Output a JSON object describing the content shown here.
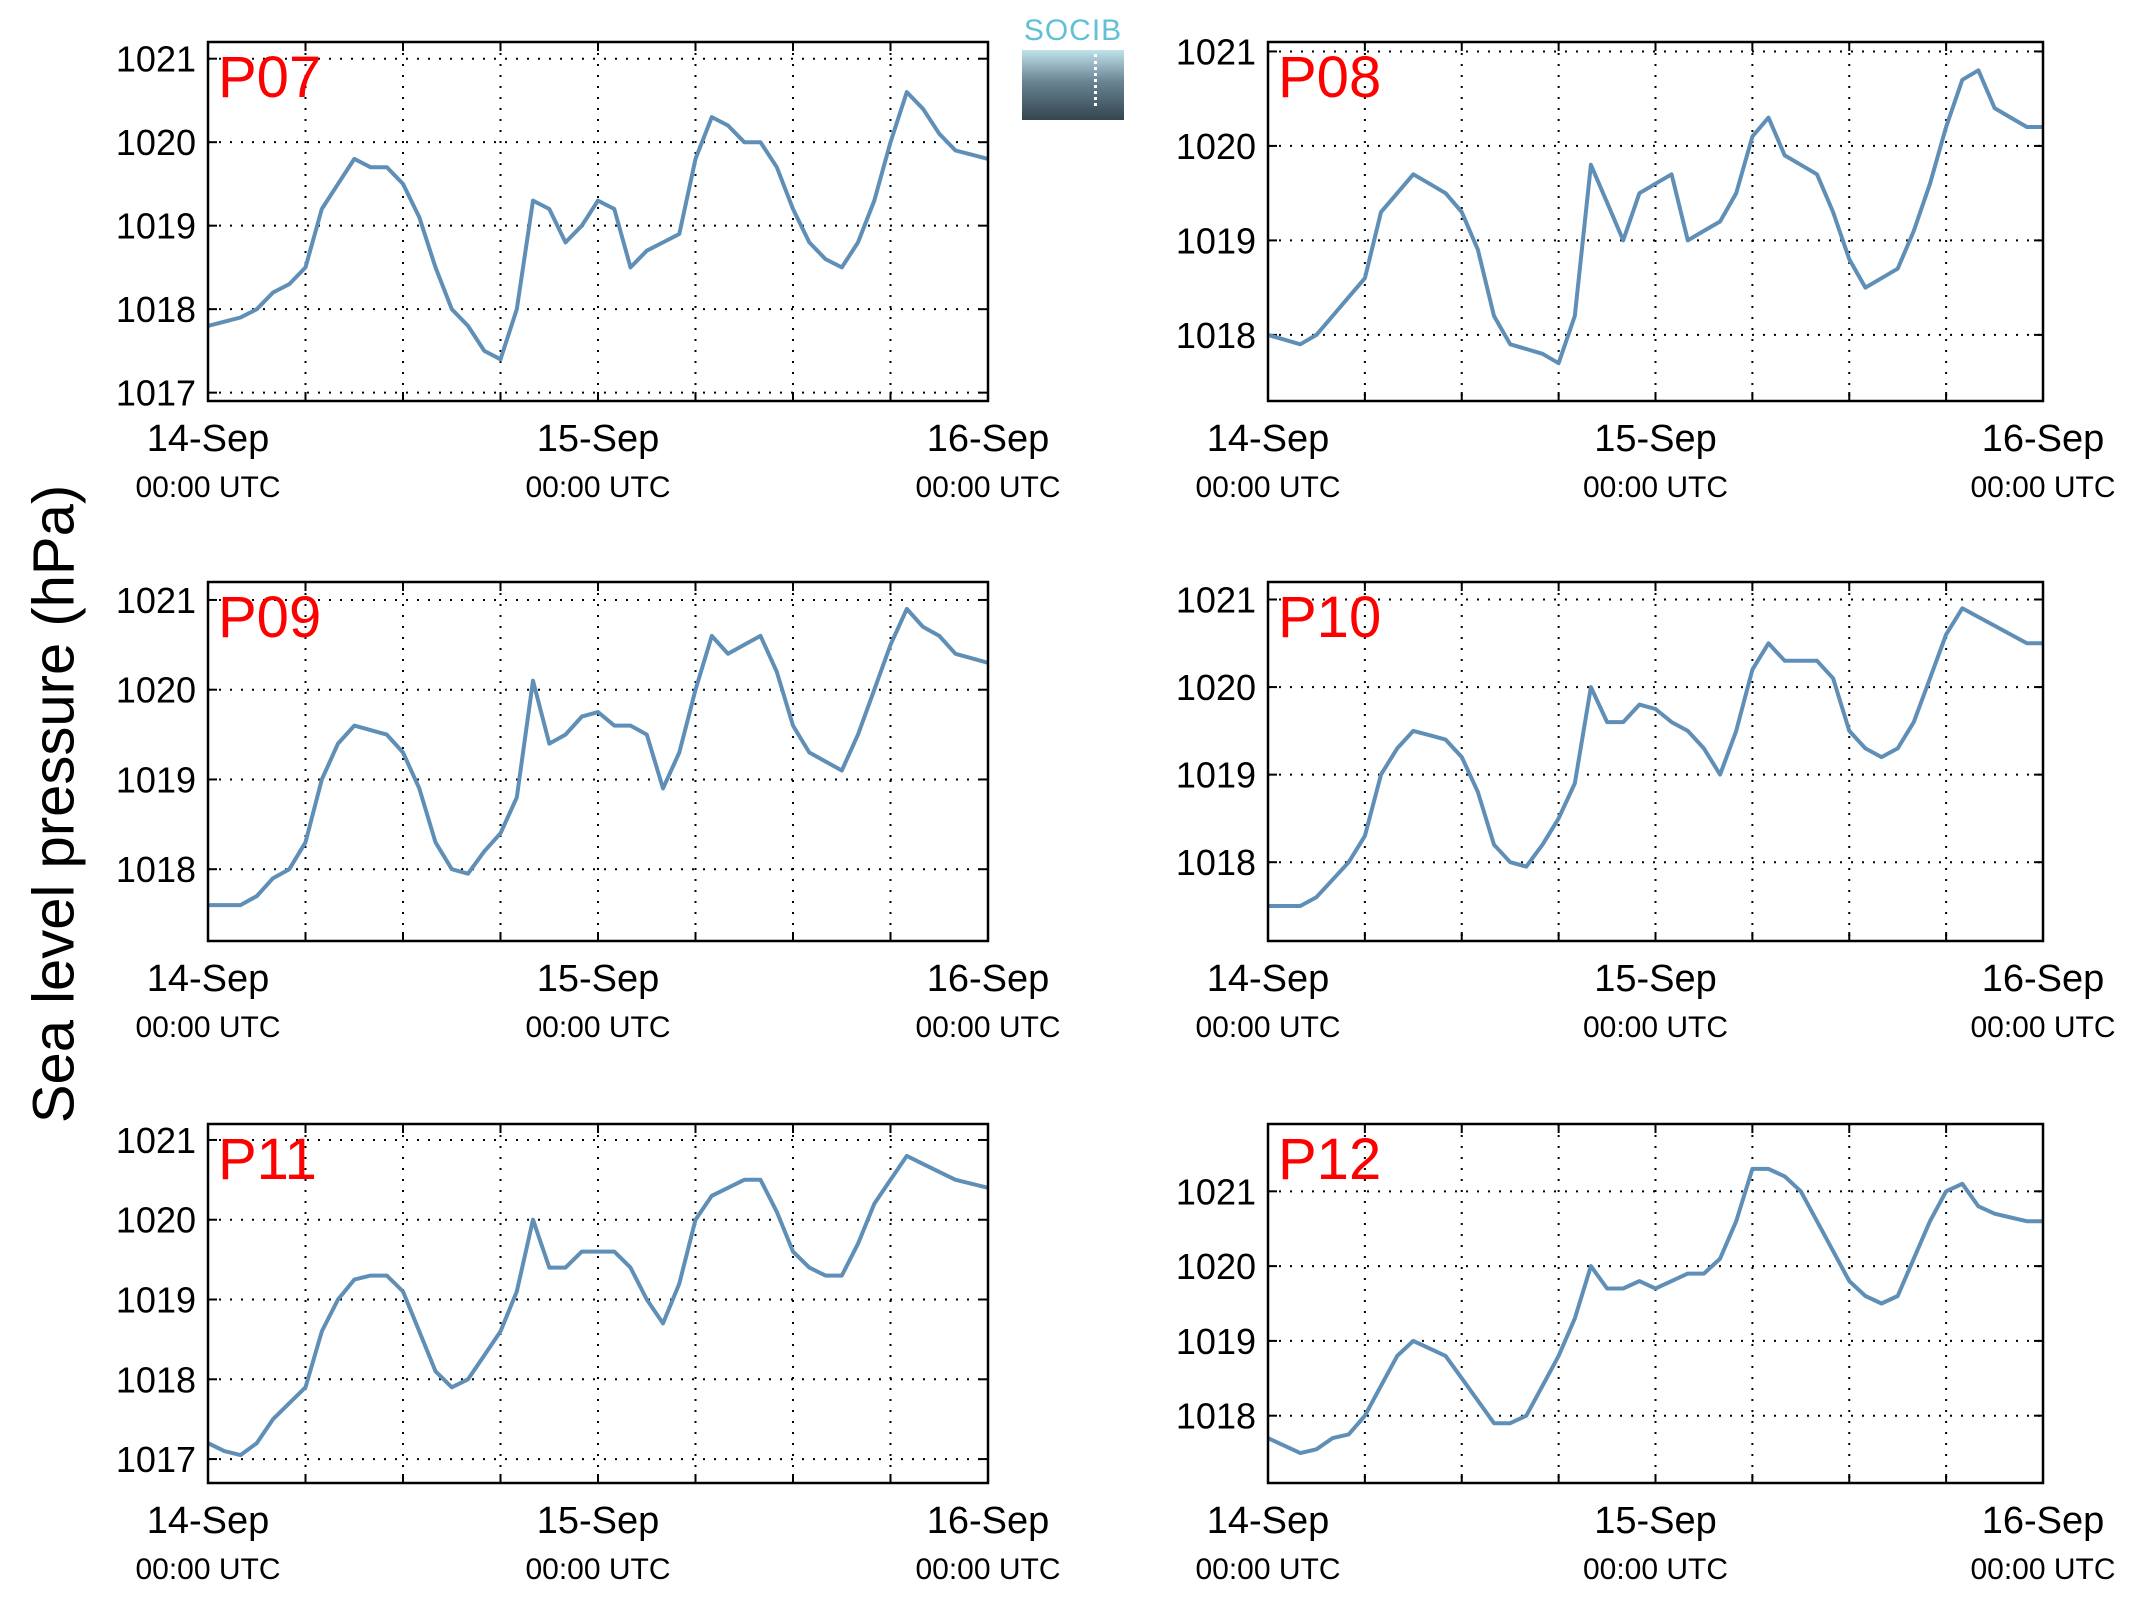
{
  "figure": {
    "ylabel": "Sea level pressure (hPa)",
    "logo_text": "SOCIB"
  },
  "colors": {
    "line": "#5f8fb6",
    "station_label": "#ff0000",
    "grid": "#000000"
  },
  "chart_data": [
    {
      "type": "line",
      "station": "P07",
      "xticks": [
        {
          "date": "14-Sep",
          "time": "00:00 UTC"
        },
        {
          "date": "15-Sep",
          "time": "00:00 UTC"
        },
        {
          "date": "16-Sep",
          "time": "00:00 UTC"
        }
      ],
      "xlim_hours": [
        0,
        48
      ],
      "ylim": [
        1016.9,
        1021.2
      ],
      "yticks": [
        1017,
        1018,
        1019,
        1020,
        1021
      ],
      "grid": true,
      "series": [
        {
          "x_hours": [
            0,
            1,
            2,
            3,
            4,
            5,
            6,
            7,
            8,
            9,
            10,
            11,
            12,
            13,
            14,
            15,
            16,
            17,
            18,
            19,
            20,
            21,
            22,
            23,
            24,
            25,
            26,
            27,
            28,
            29,
            30,
            31,
            32,
            33,
            34,
            35,
            36,
            37,
            38,
            39,
            40,
            41,
            42,
            43,
            44,
            45,
            46,
            47,
            48
          ],
          "values": [
            1017.8,
            1017.85,
            1017.9,
            1018.0,
            1018.2,
            1018.3,
            1018.5,
            1019.2,
            1019.5,
            1019.8,
            1019.7,
            1019.7,
            1019.5,
            1019.1,
            1018.5,
            1018.0,
            1017.8,
            1017.5,
            1017.4,
            1018.0,
            1019.3,
            1019.2,
            1018.8,
            1019.0,
            1019.3,
            1019.2,
            1018.5,
            1018.7,
            1018.8,
            1018.9,
            1019.8,
            1020.3,
            1020.2,
            1020.0,
            1020.0,
            1019.7,
            1019.2,
            1018.8,
            1018.6,
            1018.5,
            1018.8,
            1019.3,
            1020.0,
            1020.6,
            1020.4,
            1020.1,
            1019.9,
            1019.85,
            1019.8
          ]
        }
      ]
    },
    {
      "type": "line",
      "station": "P08",
      "xticks": [
        {
          "date": "14-Sep",
          "time": "00:00 UTC"
        },
        {
          "date": "15-Sep",
          "time": "00:00 UTC"
        },
        {
          "date": "16-Sep",
          "time": "00:00 UTC"
        }
      ],
      "xlim_hours": [
        0,
        48
      ],
      "ylim": [
        1017.3,
        1021.1
      ],
      "yticks": [
        1018,
        1019,
        1020,
        1021
      ],
      "grid": true,
      "series": [
        {
          "x_hours": [
            0,
            1,
            2,
            3,
            4,
            5,
            6,
            7,
            8,
            9,
            10,
            11,
            12,
            13,
            14,
            15,
            16,
            17,
            18,
            19,
            20,
            21,
            22,
            23,
            24,
            25,
            26,
            27,
            28,
            29,
            30,
            31,
            32,
            33,
            34,
            35,
            36,
            37,
            38,
            39,
            40,
            41,
            42,
            43,
            44,
            45,
            46,
            47,
            48
          ],
          "values": [
            1018.0,
            1017.95,
            1017.9,
            1018.0,
            1018.2,
            1018.4,
            1018.6,
            1019.3,
            1019.5,
            1019.7,
            1019.6,
            1019.5,
            1019.3,
            1018.9,
            1018.2,
            1017.9,
            1017.85,
            1017.8,
            1017.7,
            1018.2,
            1019.8,
            1019.4,
            1019.0,
            1019.5,
            1019.6,
            1019.7,
            1019.0,
            1019.1,
            1019.2,
            1019.5,
            1020.1,
            1020.3,
            1019.9,
            1019.8,
            1019.7,
            1019.3,
            1018.8,
            1018.5,
            1018.6,
            1018.7,
            1019.1,
            1019.6,
            1020.2,
            1020.7,
            1020.8,
            1020.4,
            1020.3,
            1020.2,
            1020.2
          ]
        }
      ]
    },
    {
      "type": "line",
      "station": "P09",
      "xticks": [
        {
          "date": "14-Sep",
          "time": "00:00 UTC"
        },
        {
          "date": "15-Sep",
          "time": "00:00 UTC"
        },
        {
          "date": "16-Sep",
          "time": "00:00 UTC"
        }
      ],
      "xlim_hours": [
        0,
        48
      ],
      "ylim": [
        1017.2,
        1021.2
      ],
      "yticks": [
        1018,
        1019,
        1020,
        1021
      ],
      "grid": true,
      "series": [
        {
          "x_hours": [
            0,
            1,
            2,
            3,
            4,
            5,
            6,
            7,
            8,
            9,
            10,
            11,
            12,
            13,
            14,
            15,
            16,
            17,
            18,
            19,
            20,
            21,
            22,
            23,
            24,
            25,
            26,
            27,
            28,
            29,
            30,
            31,
            32,
            33,
            34,
            35,
            36,
            37,
            38,
            39,
            40,
            41,
            42,
            43,
            44,
            45,
            46,
            47,
            48
          ],
          "values": [
            1017.6,
            1017.6,
            1017.6,
            1017.7,
            1017.9,
            1018.0,
            1018.3,
            1019.0,
            1019.4,
            1019.6,
            1019.55,
            1019.5,
            1019.3,
            1018.9,
            1018.3,
            1018.0,
            1017.95,
            1018.2,
            1018.4,
            1018.8,
            1020.1,
            1019.4,
            1019.5,
            1019.7,
            1019.75,
            1019.6,
            1019.6,
            1019.5,
            1018.9,
            1019.3,
            1020.0,
            1020.6,
            1020.4,
            1020.5,
            1020.6,
            1020.2,
            1019.6,
            1019.3,
            1019.2,
            1019.1,
            1019.5,
            1020.0,
            1020.5,
            1020.9,
            1020.7,
            1020.6,
            1020.4,
            1020.35,
            1020.3
          ]
        }
      ]
    },
    {
      "type": "line",
      "station": "P10",
      "xticks": [
        {
          "date": "14-Sep",
          "time": "00:00 UTC"
        },
        {
          "date": "15-Sep",
          "time": "00:00 UTC"
        },
        {
          "date": "16-Sep",
          "time": "00:00 UTC"
        }
      ],
      "xlim_hours": [
        0,
        48
      ],
      "ylim": [
        1017.1,
        1021.2
      ],
      "yticks": [
        1018,
        1019,
        1020,
        1021
      ],
      "grid": true,
      "series": [
        {
          "x_hours": [
            0,
            1,
            2,
            3,
            4,
            5,
            6,
            7,
            8,
            9,
            10,
            11,
            12,
            13,
            14,
            15,
            16,
            17,
            18,
            19,
            20,
            21,
            22,
            23,
            24,
            25,
            26,
            27,
            28,
            29,
            30,
            31,
            32,
            33,
            34,
            35,
            36,
            37,
            38,
            39,
            40,
            41,
            42,
            43,
            44,
            45,
            46,
            47,
            48
          ],
          "values": [
            1017.5,
            1017.5,
            1017.5,
            1017.6,
            1017.8,
            1018.0,
            1018.3,
            1019.0,
            1019.3,
            1019.5,
            1019.45,
            1019.4,
            1019.2,
            1018.8,
            1018.2,
            1018.0,
            1017.95,
            1018.2,
            1018.5,
            1018.9,
            1020.0,
            1019.6,
            1019.6,
            1019.8,
            1019.75,
            1019.6,
            1019.5,
            1019.3,
            1019.0,
            1019.5,
            1020.2,
            1020.5,
            1020.3,
            1020.3,
            1020.3,
            1020.1,
            1019.5,
            1019.3,
            1019.2,
            1019.3,
            1019.6,
            1020.1,
            1020.6,
            1020.9,
            1020.8,
            1020.7,
            1020.6,
            1020.5,
            1020.5
          ]
        }
      ]
    },
    {
      "type": "line",
      "station": "P11",
      "xticks": [
        {
          "date": "14-Sep",
          "time": "00:00 UTC"
        },
        {
          "date": "15-Sep",
          "time": "00:00 UTC"
        },
        {
          "date": "16-Sep",
          "time": "00:00 UTC"
        }
      ],
      "xlim_hours": [
        0,
        48
      ],
      "ylim": [
        1016.7,
        1021.2
      ],
      "yticks": [
        1017,
        1018,
        1019,
        1020,
        1021
      ],
      "grid": true,
      "series": [
        {
          "x_hours": [
            0,
            1,
            2,
            3,
            4,
            5,
            6,
            7,
            8,
            9,
            10,
            11,
            12,
            13,
            14,
            15,
            16,
            17,
            18,
            19,
            20,
            21,
            22,
            23,
            24,
            25,
            26,
            27,
            28,
            29,
            30,
            31,
            32,
            33,
            34,
            35,
            36,
            37,
            38,
            39,
            40,
            41,
            42,
            43,
            44,
            45,
            46,
            47,
            48
          ],
          "values": [
            1017.2,
            1017.1,
            1017.05,
            1017.2,
            1017.5,
            1017.7,
            1017.9,
            1018.6,
            1019.0,
            1019.25,
            1019.3,
            1019.3,
            1019.1,
            1018.6,
            1018.1,
            1017.9,
            1018.0,
            1018.3,
            1018.6,
            1019.1,
            1020.0,
            1019.4,
            1019.4,
            1019.6,
            1019.6,
            1019.6,
            1019.4,
            1019.0,
            1018.7,
            1019.2,
            1020.0,
            1020.3,
            1020.4,
            1020.5,
            1020.5,
            1020.1,
            1019.6,
            1019.4,
            1019.3,
            1019.3,
            1019.7,
            1020.2,
            1020.5,
            1020.8,
            1020.7,
            1020.6,
            1020.5,
            1020.45,
            1020.4
          ]
        }
      ]
    },
    {
      "type": "line",
      "station": "P12",
      "xticks": [
        {
          "date": "14-Sep",
          "time": "00:00 UTC"
        },
        {
          "date": "15-Sep",
          "time": "00:00 UTC"
        },
        {
          "date": "16-Sep",
          "time": "00:00 UTC"
        }
      ],
      "xlim_hours": [
        0,
        48
      ],
      "ylim": [
        1017.1,
        1021.9
      ],
      "yticks": [
        1018,
        1019,
        1020,
        1021
      ],
      "grid": true,
      "series": [
        {
          "x_hours": [
            0,
            1,
            2,
            3,
            4,
            5,
            6,
            7,
            8,
            9,
            10,
            11,
            12,
            13,
            14,
            15,
            16,
            17,
            18,
            19,
            20,
            21,
            22,
            23,
            24,
            25,
            26,
            27,
            28,
            29,
            30,
            31,
            32,
            33,
            34,
            35,
            36,
            37,
            38,
            39,
            40,
            41,
            42,
            43,
            44,
            45,
            46,
            47,
            48
          ],
          "values": [
            1017.7,
            1017.6,
            1017.5,
            1017.55,
            1017.7,
            1017.75,
            1018.0,
            1018.4,
            1018.8,
            1019.0,
            1018.9,
            1018.8,
            1018.5,
            1018.2,
            1017.9,
            1017.9,
            1018.0,
            1018.4,
            1018.8,
            1019.3,
            1020.0,
            1019.7,
            1019.7,
            1019.8,
            1019.7,
            1019.8,
            1019.9,
            1019.9,
            1020.1,
            1020.6,
            1021.3,
            1021.3,
            1021.2,
            1021.0,
            1020.6,
            1020.2,
            1019.8,
            1019.6,
            1019.5,
            1019.6,
            1020.1,
            1020.6,
            1021.0,
            1021.1,
            1020.8,
            1020.7,
            1020.65,
            1020.6,
            1020.6
          ]
        }
      ]
    }
  ]
}
